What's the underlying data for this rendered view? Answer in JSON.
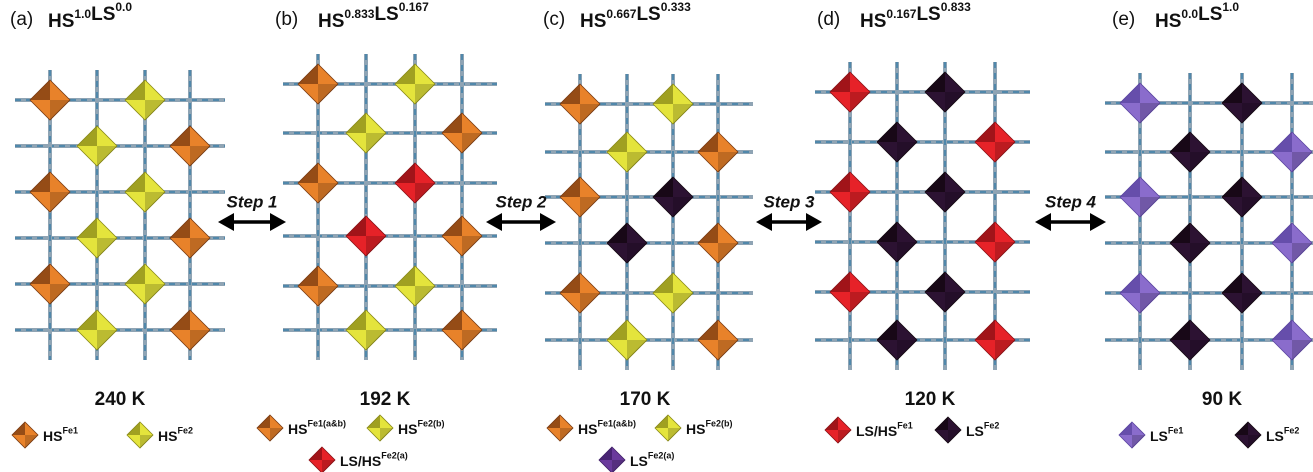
{
  "panels": [
    {
      "label": "(a)",
      "formula": [
        {
          "base": "HS",
          "sup": "1.0"
        },
        {
          "base": "LS",
          "sup": "0.0"
        }
      ],
      "temperature": "240 K",
      "legend": [
        {
          "base": "HS",
          "sup": "Fe1"
        },
        {
          "base": "HS",
          "sup": "Fe2"
        }
      ]
    },
    {
      "label": "(b)",
      "formula": [
        {
          "base": "HS",
          "sup": "0.833"
        },
        {
          "base": "LS",
          "sup": "0.167"
        }
      ],
      "temperature": "192 K",
      "legend": [
        {
          "base": "HS",
          "sup": "Fe1(a&b)"
        },
        {
          "base": "HS",
          "sup": "Fe2(b)"
        },
        {
          "base": "LS/HS",
          "sup": "Fe2(a)"
        }
      ]
    },
    {
      "label": "(c)",
      "formula": [
        {
          "base": "HS",
          "sup": "0.667"
        },
        {
          "base": "LS",
          "sup": "0.333"
        }
      ],
      "temperature": "170 K",
      "legend": [
        {
          "base": "HS",
          "sup": "Fe1(a&b)"
        },
        {
          "base": "HS",
          "sup": "Fe2(b)"
        },
        {
          "base": "LS",
          "sup": "Fe2(a)"
        }
      ]
    },
    {
      "label": "(d)",
      "formula": [
        {
          "base": "HS",
          "sup": "0.167"
        },
        {
          "base": "LS",
          "sup": "0.833"
        }
      ],
      "temperature": "120 K",
      "legend": [
        {
          "base": "LS/HS",
          "sup": "Fe1"
        },
        {
          "base": "LS",
          "sup": "Fe2"
        }
      ]
    },
    {
      "label": "(e)",
      "formula": [
        {
          "base": "HS",
          "sup": "0.0"
        },
        {
          "base": "LS",
          "sup": "1.0"
        }
      ],
      "temperature": "90 K",
      "legend": [
        {
          "base": "LS",
          "sup": "Fe1"
        },
        {
          "base": "LS",
          "sup": "Fe2"
        }
      ]
    }
  ],
  "steps": [
    "Step 1",
    "Step 2",
    "Step 3",
    "Step 4"
  ]
}
